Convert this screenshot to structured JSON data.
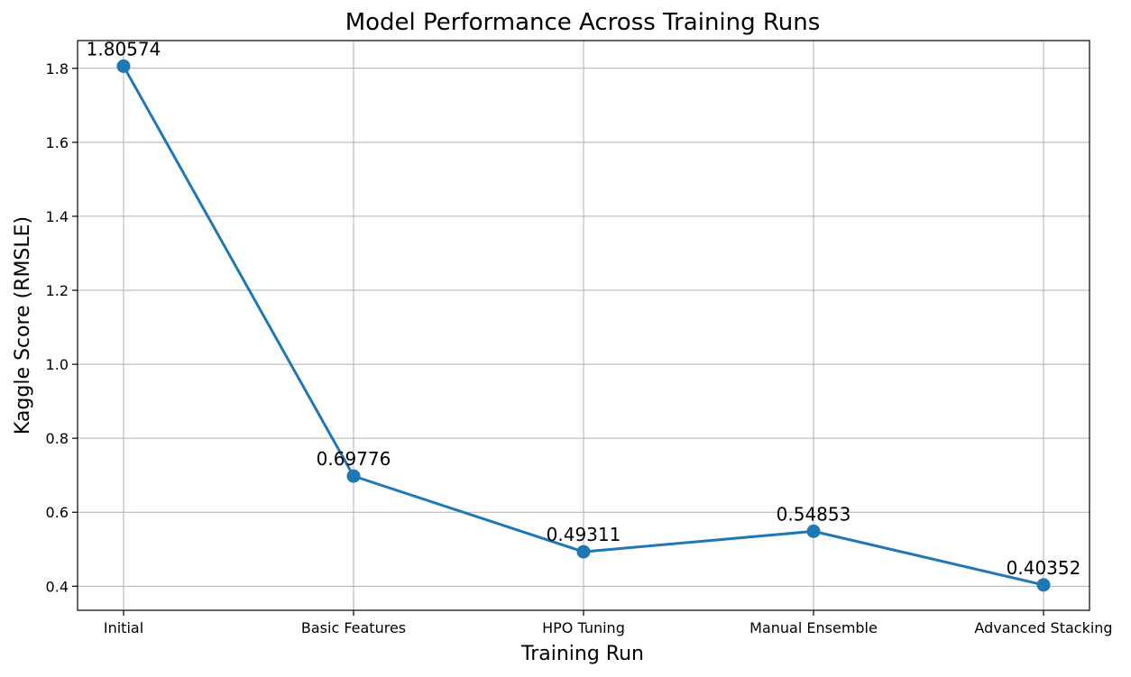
{
  "chart_data": {
    "type": "line",
    "title": "Model Performance Across Training Runs",
    "xlabel": "Training Run",
    "ylabel": "Kaggle Score (RMSLE)",
    "categories": [
      "Initial",
      "Basic Features",
      "HPO Tuning",
      "Manual Ensemble",
      "Advanced Stacking"
    ],
    "values": [
      1.80574,
      0.69776,
      0.49311,
      0.54853,
      0.40352
    ],
    "data_labels": [
      "1.80574",
      "0.69776",
      "0.49311",
      "0.54853",
      "0.40352"
    ],
    "yticks": [
      0.4,
      0.6,
      0.8,
      1.0,
      1.2,
      1.4,
      1.6,
      1.8
    ],
    "ytick_labels": [
      "0.4",
      "0.6",
      "0.8",
      "1.0",
      "1.2",
      "1.4",
      "1.6",
      "1.8"
    ],
    "ylim": [
      0.335,
      1.875
    ],
    "grid": true,
    "line_color": "#1f77b4",
    "marker": "circle"
  }
}
